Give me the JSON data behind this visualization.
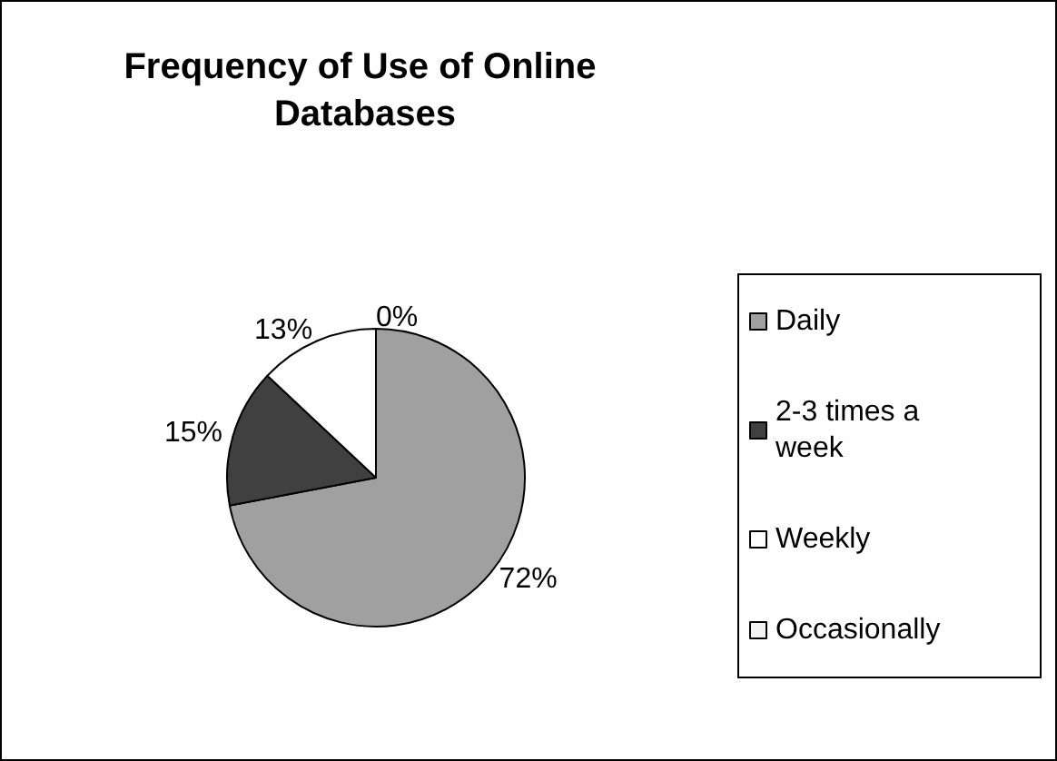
{
  "chart_data": {
    "type": "pie",
    "title": "Frequency of Use of Online Databases",
    "categories": [
      "Daily",
      "2-3 times a week",
      "Weekly",
      "Occasionally"
    ],
    "values": [
      72,
      15,
      13,
      0
    ],
    "colors": [
      "#a0a0a0",
      "#404040",
      "#ffffff",
      "#f2f2f2"
    ],
    "legend": "right",
    "value_labels": [
      "72%",
      "15%",
      "13%",
      "0%"
    ]
  }
}
